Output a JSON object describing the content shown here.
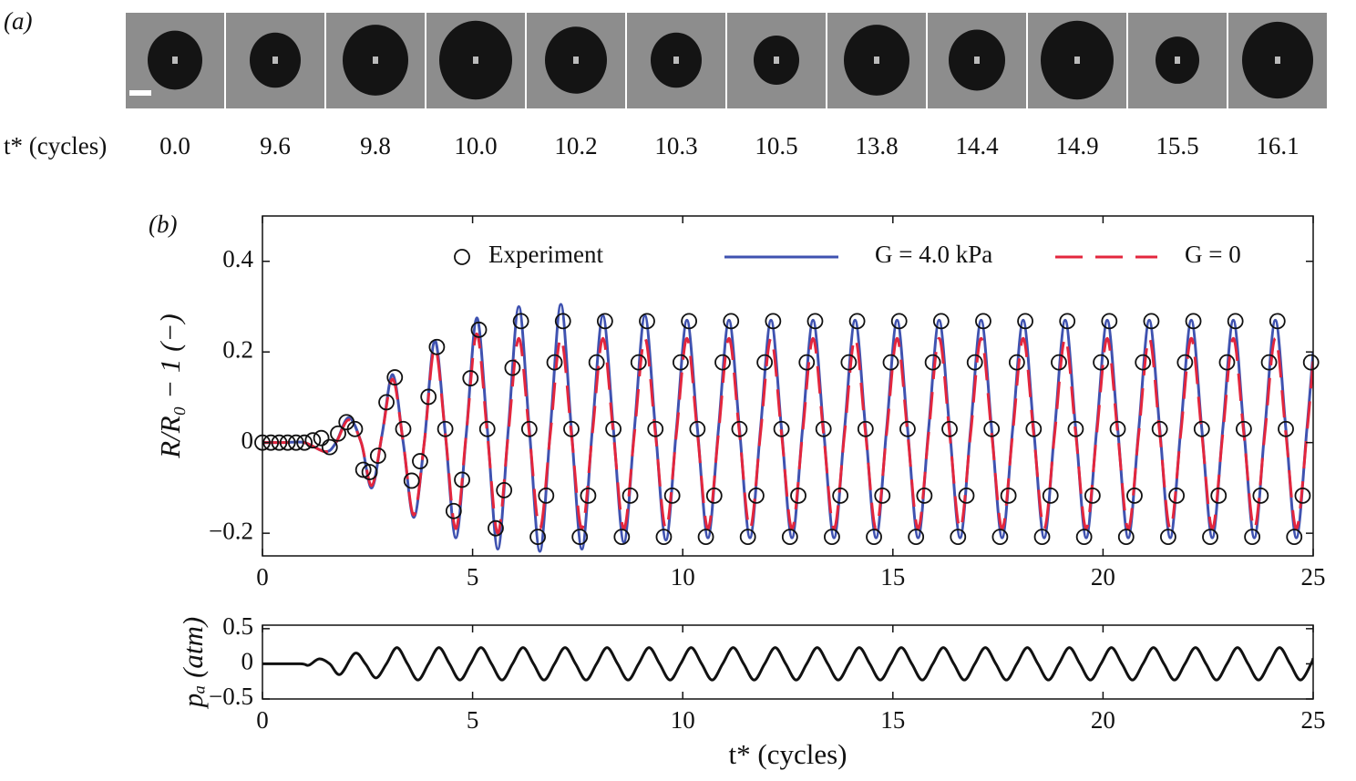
{
  "panel_a": {
    "label": "(a)",
    "row_label": "t* (cycles)",
    "times": [
      "0.0",
      "9.6",
      "9.8",
      "10.0",
      "10.2",
      "10.3",
      "10.5",
      "13.8",
      "14.4",
      "14.9",
      "15.5",
      "16.1"
    ]
  },
  "chart_data": [
    {
      "type": "line",
      "panel_label": "(b)",
      "ylabel": "R/R₀ − 1 (−)",
      "legend": "upper center",
      "xlim": [
        0,
        25
      ],
      "xticks": [
        0,
        5,
        10,
        15,
        20,
        25
      ],
      "ylim": [
        -0.25,
        0.5
      ],
      "yticks": [
        {
          "value": -0.2,
          "label": "−0.2"
        },
        0,
        0.2,
        0.4
      ],
      "series": [
        {
          "name": "Experiment",
          "style": "markers",
          "color": "#111111",
          "x": [
            0,
            0.2,
            0.4,
            0.6,
            0.8,
            1.0,
            1.2,
            1.4,
            1.6,
            1.8,
            2.0,
            2.2,
            2.4,
            2.55,
            2.75,
            2.95,
            3.15,
            3.35,
            3.55,
            3.75,
            3.95,
            4.15,
            4.35,
            4.55,
            4.75,
            4.95,
            5.15,
            5.35,
            5.55,
            5.75,
            5.95,
            6.15,
            6.35,
            6.55,
            6.75,
            6.95,
            7.15,
            7.35,
            7.55,
            7.75,
            7.95,
            8.15,
            8.35,
            8.55,
            8.75,
            8.95,
            9.15,
            9.35,
            9.55,
            9.75,
            9.95,
            10.15,
            10.35,
            10.55,
            10.75,
            10.95,
            11.15,
            11.35,
            11.55,
            11.75,
            11.95,
            12.15,
            12.35,
            12.55,
            12.75,
            12.95,
            13.15,
            13.35,
            13.55,
            13.75,
            13.95,
            14.15,
            14.35,
            14.55,
            14.75,
            14.95,
            15.15,
            15.35,
            15.55,
            15.75,
            15.95,
            16.15,
            16.35,
            16.55,
            16.75,
            16.95,
            17.15,
            17.35,
            17.55,
            17.75,
            17.95,
            18.15,
            18.35,
            18.55,
            18.75,
            18.95,
            19.15,
            19.35,
            19.55,
            19.75,
            19.95,
            20.15,
            20.35,
            20.55,
            20.75,
            20.95,
            21.15,
            21.35,
            21.55,
            21.75,
            21.95,
            22.15,
            22.35,
            22.55,
            22.75,
            22.95,
            23.15,
            23.35,
            23.55,
            23.75,
            23.95,
            24.15,
            24.35,
            24.55,
            24.75,
            24.95
          ],
          "values": [
            0,
            0,
            0,
            0,
            0,
            0,
            0.005,
            0.01,
            -0.01,
            0.02,
            0.045,
            0.03,
            -0.06,
            -0.065,
            -0.029,
            0.089,
            0.144,
            0.03,
            -0.084,
            -0.041,
            0.101,
            0.211,
            0.03,
            -0.151,
            -0.082,
            0.142,
            0.249,
            0.03,
            -0.189,
            -0.105,
            0.165,
            0.268,
            0.03,
            -0.208,
            -0.117,
            0.177,
            0.268,
            0.03,
            -0.208,
            -0.117,
            0.177,
            0.268,
            0.03,
            -0.208,
            -0.117,
            0.177,
            0.268,
            0.03,
            -0.208,
            -0.117,
            0.177,
            0.268,
            0.03,
            -0.208,
            -0.117,
            0.177,
            0.268,
            0.03,
            -0.208,
            -0.117,
            0.177,
            0.268,
            0.03,
            -0.208,
            -0.117,
            0.177,
            0.268,
            0.03,
            -0.208,
            -0.117,
            0.177,
            0.268,
            0.03,
            -0.208,
            -0.117,
            0.177,
            0.268,
            0.03,
            -0.208,
            -0.117,
            0.177,
            0.268,
            0.03,
            -0.208,
            -0.117,
            0.177,
            0.268,
            0.03,
            -0.208,
            -0.117,
            0.177,
            0.268,
            0.03,
            -0.208,
            -0.117,
            0.177,
            0.268,
            0.03,
            -0.208,
            -0.117,
            0.177,
            0.268,
            0.03,
            -0.208,
            -0.117,
            0.177,
            0.268,
            0.03,
            -0.208,
            -0.117,
            0.177,
            0.268,
            0.03,
            -0.208,
            -0.117,
            0.177,
            0.268,
            0.03,
            -0.208,
            -0.117,
            0.177,
            0.268,
            0.03,
            -0.208,
            -0.117,
            0.177
          ]
        },
        {
          "name": "G = 4.0 kPa",
          "style": "solid",
          "color": "#3f52b0",
          "x": [
            0,
            0.5,
            1,
            1.5,
            1.75,
            2.05,
            2.35,
            2.6,
            2.85,
            3.1,
            3.35,
            3.6,
            3.85,
            4.1,
            4.35,
            4.6,
            4.85,
            5.1,
            5.35,
            5.6,
            5.85,
            6.1,
            6.35,
            6.6,
            6.85,
            7.1,
            7.35,
            7.6,
            7.85,
            8.1,
            8.35,
            8.6,
            8.85,
            9.1,
            9.35,
            9.6,
            9.85,
            10.1,
            10.35,
            10.6,
            10.85,
            11.1,
            11.35,
            11.6,
            11.85,
            12.1,
            12.35,
            12.6,
            12.85,
            13.1,
            13.35,
            13.6,
            13.85,
            14.1,
            14.35,
            14.6,
            14.85,
            15.1,
            15.35,
            15.6,
            15.85,
            16.1,
            16.35,
            16.6,
            16.85,
            17.1,
            17.35,
            17.6,
            17.85,
            18.1,
            18.35,
            18.6,
            18.85,
            19.1,
            19.35,
            19.6,
            19.85,
            20.1,
            20.35,
            20.6,
            20.85,
            21.1,
            21.35,
            21.6,
            21.85,
            22.1,
            22.35,
            22.6,
            22.85,
            23.1,
            23.35,
            23.6,
            23.85,
            24.1,
            24.35,
            24.6,
            24.85,
            25
          ],
          "values": [
            0,
            0,
            0,
            -0.02,
            0,
            0.055,
            0,
            -0.1,
            0.02,
            0.15,
            0,
            -0.165,
            0,
            0.225,
            0.02,
            -0.21,
            0.02,
            0.275,
            0.03,
            -0.235,
            0.03,
            0.3,
            0.03,
            -0.24,
            0.03,
            0.305,
            0.03,
            -0.235,
            0.03,
            0.28,
            0.03,
            -0.22,
            0.03,
            0.28,
            0.03,
            -0.215,
            0.03,
            0.27,
            0.03,
            -0.21,
            0.03,
            0.27,
            0.03,
            -0.21,
            0.03,
            0.27,
            0.03,
            -0.21,
            0.03,
            0.27,
            0.03,
            -0.21,
            0.03,
            0.27,
            0.03,
            -0.21,
            0.03,
            0.27,
            0.03,
            -0.21,
            0.03,
            0.27,
            0.03,
            -0.21,
            0.03,
            0.27,
            0.03,
            -0.21,
            0.03,
            0.27,
            0.03,
            -0.21,
            0.03,
            0.27,
            0.03,
            -0.21,
            0.03,
            0.27,
            0.03,
            -0.21,
            0.03,
            0.27,
            0.03,
            -0.21,
            0.03,
            0.27,
            0.03,
            -0.21,
            0.03,
            0.27,
            0.03,
            -0.21,
            0.03,
            0.27,
            0.03,
            -0.21,
            0.03,
            0.2
          ]
        },
        {
          "name": "G = 0",
          "style": "dashed",
          "color": "#e3263d",
          "x": [
            0,
            0.5,
            1,
            1.5,
            1.75,
            2.05,
            2.35,
            2.6,
            2.85,
            3.1,
            3.35,
            3.6,
            3.85,
            4.1,
            4.35,
            4.6,
            4.85,
            5.1,
            5.35,
            5.6,
            5.85,
            6.1,
            6.35,
            6.6,
            6.85,
            7.1,
            7.35,
            7.6,
            7.85,
            8.1,
            8.35,
            8.6,
            8.85,
            9.1,
            9.35,
            9.6,
            9.85,
            10.1,
            10.35,
            10.6,
            10.85,
            11.1,
            11.35,
            11.6,
            11.85,
            12.1,
            12.35,
            12.6,
            12.85,
            13.1,
            13.35,
            13.6,
            13.85,
            14.1,
            14.35,
            14.6,
            14.85,
            15.1,
            15.35,
            15.6,
            15.85,
            16.1,
            16.35,
            16.6,
            16.85,
            17.1,
            17.35,
            17.6,
            17.85,
            18.1,
            18.35,
            18.6,
            18.85,
            19.1,
            19.35,
            19.6,
            19.85,
            20.1,
            20.35,
            20.6,
            20.85,
            21.1,
            21.35,
            21.6,
            21.85,
            22.1,
            22.35,
            22.6,
            22.85,
            23.1,
            23.35,
            23.6,
            23.85,
            24.1,
            24.35,
            24.6,
            24.85,
            25
          ],
          "values": [
            0,
            0,
            0,
            -0.02,
            0,
            0.05,
            0,
            -0.095,
            0.02,
            0.14,
            0,
            -0.16,
            0,
            0.21,
            0.02,
            -0.19,
            0.02,
            0.24,
            0.02,
            -0.2,
            0.02,
            0.23,
            0.02,
            -0.19,
            0.02,
            0.23,
            0.02,
            -0.19,
            0.02,
            0.23,
            0.02,
            -0.19,
            0.02,
            0.23,
            0.02,
            -0.19,
            0.02,
            0.23,
            0.02,
            -0.19,
            0.02,
            0.23,
            0.02,
            -0.19,
            0.02,
            0.23,
            0.02,
            -0.19,
            0.02,
            0.23,
            0.02,
            -0.19,
            0.02,
            0.23,
            0.02,
            -0.19,
            0.02,
            0.23,
            0.02,
            -0.19,
            0.02,
            0.23,
            0.02,
            -0.19,
            0.02,
            0.23,
            0.02,
            -0.19,
            0.02,
            0.23,
            0.02,
            -0.19,
            0.02,
            0.23,
            0.02,
            -0.19,
            0.02,
            0.23,
            0.02,
            -0.19,
            0.02,
            0.23,
            0.02,
            -0.19,
            0.02,
            0.23,
            0.02,
            -0.19,
            0.02,
            0.23,
            0.02,
            -0.19,
            0.02,
            0.23,
            0.02,
            -0.19,
            0.02,
            0.18
          ]
        }
      ]
    },
    {
      "type": "line",
      "ylabel": "pₐ (atm)",
      "xlabel": "t* (cycles)",
      "xlim": [
        0,
        25
      ],
      "xticks": [
        0,
        5,
        10,
        15,
        20,
        25
      ],
      "ylim": [
        -0.5,
        0.55
      ],
      "yticks": [
        {
          "value": -0.5,
          "label": "−0.5"
        },
        0,
        0.5
      ],
      "series": [
        {
          "style": "solid",
          "color": "#111111",
          "x": [
            0,
            0.9,
            1.1,
            1.35,
            1.6,
            1.85,
            2.2,
            2.45,
            2.7,
            2.95,
            3.2,
            3.45,
            3.7,
            3.95,
            4.2,
            4.45,
            4.7,
            4.95,
            5.2,
            5.45,
            5.7,
            5.95,
            6.2,
            6.45,
            6.7,
            6.95,
            7.2,
            7.45,
            7.7,
            7.95,
            8.2,
            8.45,
            8.7,
            8.95,
            9.2,
            9.45,
            9.7,
            9.95,
            10.2,
            10.45,
            10.7,
            10.95,
            11.2,
            11.45,
            11.7,
            11.95,
            12.2,
            12.45,
            12.7,
            12.95,
            13.2,
            13.45,
            13.7,
            13.95,
            14.2,
            14.45,
            14.7,
            14.95,
            15.2,
            15.45,
            15.7,
            15.95,
            16.2,
            16.45,
            16.7,
            16.95,
            17.2,
            17.45,
            17.7,
            17.95,
            18.2,
            18.45,
            18.7,
            18.95,
            19.2,
            19.45,
            19.7,
            19.95,
            20.2,
            20.45,
            20.7,
            20.95,
            21.2,
            21.45,
            21.7,
            21.95,
            22.2,
            22.45,
            22.7,
            22.95,
            23.2,
            23.45,
            23.7,
            23.95,
            24.2,
            24.45,
            24.7,
            24.95,
            25
          ],
          "values": [
            0,
            0,
            -0.02,
            0.07,
            0,
            -0.15,
            0.15,
            0,
            -0.2,
            0,
            0.23,
            0,
            -0.23,
            0,
            0.23,
            0,
            -0.23,
            0,
            0.23,
            0,
            -0.23,
            0,
            0.23,
            0,
            -0.23,
            0,
            0.23,
            0,
            -0.23,
            0,
            0.23,
            0,
            -0.23,
            0,
            0.23,
            0,
            -0.23,
            0,
            0.23,
            0,
            -0.23,
            0,
            0.23,
            0,
            -0.23,
            0,
            0.23,
            0,
            -0.23,
            0,
            0.23,
            0,
            -0.23,
            0,
            0.23,
            0,
            -0.23,
            0,
            0.23,
            0,
            -0.23,
            0,
            0.23,
            0,
            -0.23,
            0,
            0.23,
            0,
            -0.23,
            0,
            0.23,
            0,
            -0.23,
            0,
            0.23,
            0,
            -0.23,
            0,
            0.23,
            0,
            -0.23,
            0,
            0.23,
            0,
            -0.23,
            0,
            0.23,
            0,
            -0.23,
            0,
            0.23,
            0,
            -0.23,
            0,
            0.23,
            0,
            -0.23,
            0,
            0.08
          ]
        }
      ]
    }
  ]
}
